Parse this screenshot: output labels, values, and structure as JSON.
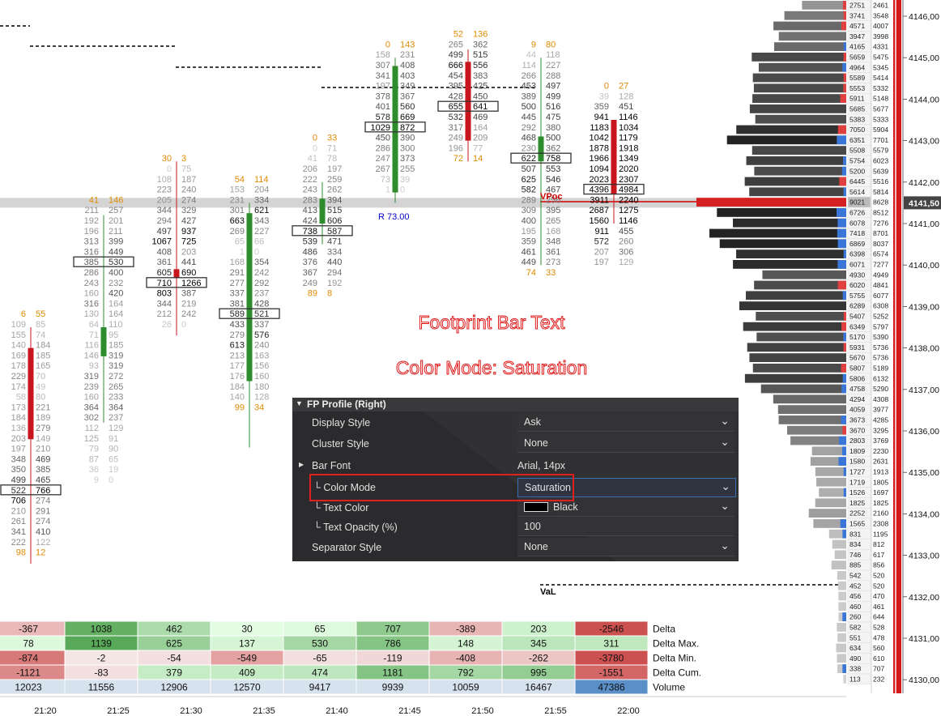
{
  "colors": {
    "up": "#2e8b2e",
    "down": "#c8161e",
    "orange": "#e08a00",
    "blue": "#0000cc",
    "poc": "#d00000",
    "panel_bg": "#2b2b2d",
    "highlight": "#e0201c"
  },
  "price_axis": {
    "labels": [
      "4146,00",
      "4145,00",
      "4144,00",
      "4143,00",
      "4142,00",
      "4141,00",
      "4140,00",
      "4139,00",
      "4138,00",
      "4137,00",
      "4136,00",
      "4135,00",
      "4134,00",
      "4133,00",
      "4132,00",
      "4131,00",
      "4130,00"
    ],
    "current": "4141,50"
  },
  "time_axis": [
    "21:20",
    "21:25",
    "21:30",
    "21:35",
    "21:40",
    "21:45",
    "21:50",
    "21:55",
    "22:00"
  ],
  "annotations": {
    "title1": "Footprint Bar Text",
    "title2": "Color Mode: Saturation",
    "vpoc": "VPoc",
    "val": "VaL",
    "range": "R 73.00"
  },
  "profile": {
    "bid": [
      "2751",
      "3741",
      "4571",
      "3947",
      "4165",
      "5659",
      "4964",
      "5589",
      "5553",
      "5911",
      "5685",
      "5383",
      "7050",
      "6351",
      "5508",
      "5754",
      "5200",
      "6445",
      "5614",
      "9021",
      "6726",
      "6078",
      "7418",
      "6869",
      "6398",
      "6071",
      "4930",
      "6020",
      "5755",
      "6289",
      "5407",
      "6349",
      "5170",
      "5931",
      "5670",
      "5807",
      "5806",
      "4758",
      "4294",
      "4059",
      "3673",
      "3670",
      "2803",
      "1809",
      "1580",
      "1727",
      "1719",
      "1526",
      "1825",
      "2252",
      "1565",
      "831",
      "834",
      "746",
      "885",
      "542",
      "452",
      "456",
      "460",
      "260",
      "582",
      "551",
      "634",
      "490",
      "338",
      "113"
    ],
    "ask": [
      "2461",
      "3548",
      "4007",
      "3998",
      "4331",
      "5475",
      "5345",
      "5414",
      "5332",
      "5148",
      "5677",
      "5333",
      "5904",
      "7701",
      "5579",
      "6023",
      "5639",
      "5516",
      "5814",
      "8628",
      "8512",
      "7276",
      "8701",
      "8037",
      "6574",
      "7277",
      "4949",
      "4841",
      "6077",
      "6308",
      "5252",
      "5797",
      "5390",
      "5736",
      "5736",
      "5189",
      "6132",
      "5290",
      "4308",
      "3977",
      "4285",
      "3295",
      "3769",
      "2230",
      "2631",
      "1913",
      "1805",
      "1697",
      "1825",
      "2160",
      "2308",
      "1195",
      "812",
      "617",
      "856",
      "520",
      "520",
      "470",
      "461",
      "644",
      "528",
      "478",
      "560",
      "610",
      "707",
      "232"
    ]
  },
  "summary": {
    "labels": [
      "Delta",
      "Delta Max.",
      "Delta Min.",
      "Delta Cum.",
      "Volume"
    ],
    "rows": [
      [
        "-367",
        "1038",
        "462",
        "30",
        "65",
        "707",
        "-389",
        "203",
        "-2546"
      ],
      [
        "78",
        "1139",
        "625",
        "137",
        "530",
        "786",
        "148",
        "345",
        "311"
      ],
      [
        "-874",
        "-2",
        "-54",
        "-549",
        "-65",
        "-119",
        "-408",
        "-262",
        "-3780"
      ],
      [
        "-1121",
        "-83",
        "379",
        "409",
        "474",
        "1181",
        "792",
        "995",
        "-1551"
      ],
      [
        "12023",
        "11556",
        "12906",
        "12570",
        "9417",
        "9939",
        "10059",
        "16467",
        "47386"
      ]
    ]
  },
  "footprint": [
    {
      "top_bid": "6",
      "top_ask": "55",
      "bot_bid": "98",
      "bot_ask": "12",
      "rows": [
        [
          "109",
          "85"
        ],
        [
          "155",
          "74"
        ],
        [
          "140",
          "184"
        ],
        [
          "169",
          "185"
        ],
        [
          "178",
          "165"
        ],
        [
          "229",
          "70"
        ],
        [
          "174",
          "49"
        ],
        [
          "58",
          "80"
        ],
        [
          "173",
          "221"
        ],
        [
          "184",
          "189"
        ],
        [
          "136",
          "279"
        ],
        [
          "203",
          "149"
        ],
        [
          "197",
          "210"
        ],
        [
          "348",
          "469"
        ],
        [
          "350",
          "385"
        ],
        [
          "499",
          "465"
        ],
        [
          "522",
          "766"
        ],
        [
          "706",
          "274"
        ],
        [
          "210",
          "291"
        ],
        [
          "261",
          "274"
        ],
        [
          "341",
          "410"
        ],
        [
          "222",
          "122"
        ]
      ]
    },
    {
      "top_bid": "41",
      "top_ask": "146",
      "bot_bid": "",
      "bot_ask": "",
      "rows": [
        [
          "211",
          "257"
        ],
        [
          "192",
          "201"
        ],
        [
          "196",
          "211"
        ],
        [
          "313",
          "399"
        ],
        [
          "316",
          "449"
        ],
        [
          "385",
          "530"
        ],
        [
          "286",
          "400"
        ],
        [
          "243",
          "232"
        ],
        [
          "160",
          "420"
        ],
        [
          "316",
          "164"
        ],
        [
          "130",
          "164"
        ],
        [
          "64",
          "110"
        ],
        [
          "71",
          "95"
        ],
        [
          "116",
          "185"
        ],
        [
          "146",
          "319"
        ],
        [
          "93",
          "319"
        ],
        [
          "319",
          "272"
        ],
        [
          "239",
          "265"
        ],
        [
          "160",
          "233"
        ],
        [
          "364",
          "364"
        ],
        [
          "302",
          "237"
        ],
        [
          "112",
          "129"
        ],
        [
          "125",
          "91"
        ],
        [
          "79",
          "90"
        ],
        [
          "87",
          "65"
        ],
        [
          "36",
          "19"
        ],
        [
          "9",
          "0"
        ]
      ]
    },
    {
      "top_bid": "30",
      "top_ask": "3",
      "bot_bid": "",
      "bot_ask": "",
      "rows": [
        [
          "0",
          "75"
        ],
        [
          "108",
          "187"
        ],
        [
          "223",
          "240"
        ],
        [
          "205",
          "274"
        ],
        [
          "344",
          "329"
        ],
        [
          "294",
          "427"
        ],
        [
          "497",
          "937"
        ],
        [
          "1067",
          "725"
        ],
        [
          "408",
          "203"
        ],
        [
          "361",
          "441"
        ],
        [
          "605",
          "690"
        ],
        [
          "710",
          "1266"
        ],
        [
          "803",
          "387"
        ],
        [
          "344",
          "219"
        ],
        [
          "212",
          "242"
        ],
        [
          "26",
          "0"
        ]
      ]
    },
    {
      "top_bid": "54",
      "top_ask": "114",
      "bot_bid": "99",
      "bot_ask": "34",
      "rows": [
        [
          "153",
          "204"
        ],
        [
          "231",
          "334"
        ],
        [
          "301",
          "621"
        ],
        [
          "663",
          "343"
        ],
        [
          "269",
          "227"
        ],
        [
          "65",
          "66"
        ],
        [
          "1",
          "0"
        ],
        [
          "168",
          "354"
        ],
        [
          "291",
          "242"
        ],
        [
          "277",
          "292"
        ],
        [
          "337",
          "237"
        ],
        [
          "381",
          "428"
        ],
        [
          "589",
          "521"
        ],
        [
          "433",
          "337"
        ],
        [
          "279",
          "576"
        ],
        [
          "613",
          "240"
        ],
        [
          "213",
          "163"
        ],
        [
          "177",
          "156"
        ],
        [
          "176",
          "160"
        ],
        [
          "184",
          "180"
        ],
        [
          "140",
          "128"
        ]
      ]
    },
    {
      "top_bid": "0",
      "top_ask": "33",
      "bot_bid": "89",
      "bot_ask": "8",
      "rows": [
        [
          "0",
          "71"
        ],
        [
          "41",
          "78"
        ],
        [
          "206",
          "197"
        ],
        [
          "222",
          "259"
        ],
        [
          "243",
          "262"
        ],
        [
          "283",
          "394"
        ],
        [
          "413",
          "515"
        ],
        [
          "424",
          "606"
        ],
        [
          "738",
          "587"
        ],
        [
          "539",
          "471"
        ],
        [
          "486",
          "334"
        ],
        [
          "376",
          "440"
        ],
        [
          "367",
          "294"
        ],
        [
          "249",
          "192"
        ]
      ]
    },
    {
      "top_bid": "0",
      "top_ask": "143",
      "bot_bid": "",
      "bot_ask": "",
      "rows": [
        [
          "158",
          "231"
        ],
        [
          "307",
          "408"
        ],
        [
          "341",
          "403"
        ],
        [
          "197",
          "349"
        ],
        [
          "378",
          "367"
        ],
        [
          "401",
          "560"
        ],
        [
          "578",
          "669"
        ],
        [
          "1029",
          "872"
        ],
        [
          "450",
          "390"
        ],
        [
          "286",
          "300"
        ],
        [
          "247",
          "373"
        ],
        [
          "267",
          "255"
        ],
        [
          "73",
          "39"
        ],
        [
          "1",
          "0"
        ]
      ]
    },
    {
      "top_bid": "52",
      "top_ask": "136",
      "bot_bid": "72",
      "bot_ask": "14",
      "rows": [
        [
          "265",
          "362"
        ],
        [
          "499",
          "515"
        ],
        [
          "666",
          "556"
        ],
        [
          "454",
          "383"
        ],
        [
          "395",
          "425"
        ],
        [
          "428",
          "450"
        ],
        [
          "655",
          "641"
        ],
        [
          "532",
          "469"
        ],
        [
          "317",
          "164"
        ],
        [
          "249",
          "209"
        ],
        [
          "196",
          "77"
        ]
      ]
    },
    {
      "top_bid": "9",
      "top_ask": "80",
      "bot_bid": "74",
      "bot_ask": "33",
      "rows": [
        [
          "44",
          "118"
        ],
        [
          "114",
          "227"
        ],
        [
          "266",
          "288"
        ],
        [
          "453",
          "497"
        ],
        [
          "389",
          "499"
        ],
        [
          "500",
          "516"
        ],
        [
          "445",
          "475"
        ],
        [
          "292",
          "380"
        ],
        [
          "468",
          "500"
        ],
        [
          "230",
          "362"
        ],
        [
          "622",
          "758"
        ],
        [
          "507",
          "553"
        ],
        [
          "625",
          "546"
        ],
        [
          "582",
          "467"
        ],
        [
          "289",
          "256"
        ],
        [
          "309",
          "395"
        ],
        [
          "400",
          "265"
        ],
        [
          "195",
          "168"
        ],
        [
          "359",
          "348"
        ],
        [
          "461",
          "361"
        ],
        [
          "449",
          "273"
        ]
      ]
    },
    {
      "top_bid": "0",
      "top_ask": "27",
      "bot_bid": "",
      "bot_ask": "",
      "rows": [
        [
          "39",
          "128"
        ],
        [
          "359",
          "451"
        ],
        [
          "941",
          "1146"
        ],
        [
          "1183",
          "1034"
        ],
        [
          "1042",
          "1179"
        ],
        [
          "1878",
          "1918"
        ],
        [
          "1966",
          "1349"
        ],
        [
          "1094",
          "2020"
        ],
        [
          "2023",
          "2307"
        ],
        [
          "4396",
          "4984"
        ],
        [
          "3911",
          "2240"
        ],
        [
          "2687",
          "1275"
        ],
        [
          "1560",
          "1146"
        ],
        [
          "911",
          "455"
        ],
        [
          "572",
          "260"
        ],
        [
          "207",
          "306"
        ],
        [
          "197",
          "129"
        ]
      ]
    }
  ],
  "settings": {
    "header": "FP Profile (Right)",
    "rows": [
      {
        "label": "Display Style",
        "value": "Ask"
      },
      {
        "label": "Cluster Style",
        "value": "None"
      },
      {
        "label": "Bar Font",
        "value": "Arial, 14px"
      },
      {
        "label": "└ Color Mode",
        "value": "Saturation"
      },
      {
        "label": "└ Text Color",
        "value": "Black"
      },
      {
        "label": "└ Text Opacity (%)",
        "value": "100"
      },
      {
        "label": "Separator Style",
        "value": "None"
      }
    ]
  }
}
